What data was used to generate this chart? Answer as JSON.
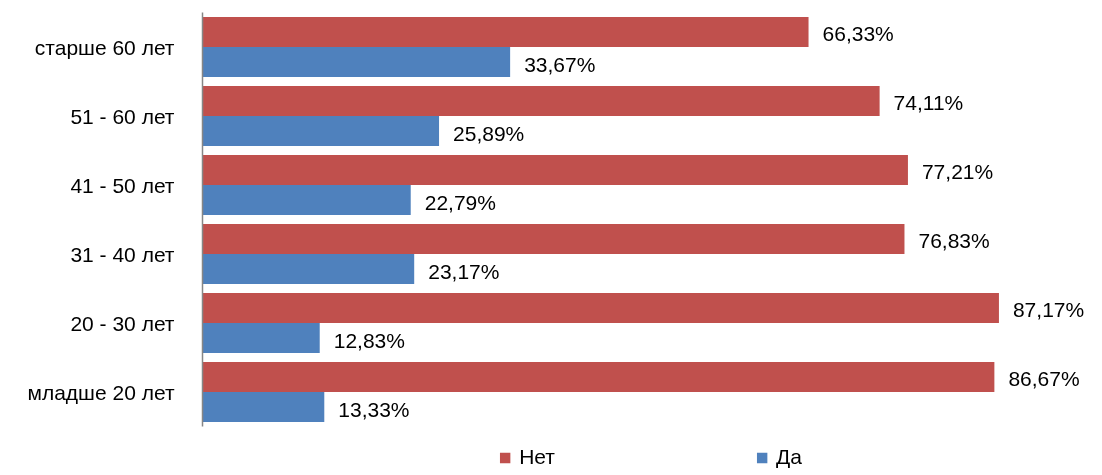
{
  "chart_data": {
    "type": "bar",
    "orientation": "horizontal",
    "categories": [
      "старше 60 лет",
      "51 - 60 лет",
      "41 - 50 лет",
      "31 - 40 лет",
      "20 - 30 лет",
      "младше 20 лет"
    ],
    "series": [
      {
        "name": "Нет",
        "color": "#c0504d",
        "values": [
          66.33,
          74.11,
          77.21,
          76.83,
          87.17,
          86.67
        ],
        "value_labels": [
          "66,33%",
          "74,11%",
          "77,21%",
          "76,83%",
          "87,17%",
          "86,67%"
        ]
      },
      {
        "name": "Да",
        "color": "#4f81bd",
        "values": [
          33.67,
          25.89,
          22.79,
          23.17,
          12.83,
          13.33
        ],
        "value_labels": [
          "33,67%",
          "25,89%",
          "22,79%",
          "23,17%",
          "12,83%",
          "13,33%"
        ]
      }
    ],
    "tick_labels": "y",
    "grid": false,
    "legend": "bottom"
  }
}
